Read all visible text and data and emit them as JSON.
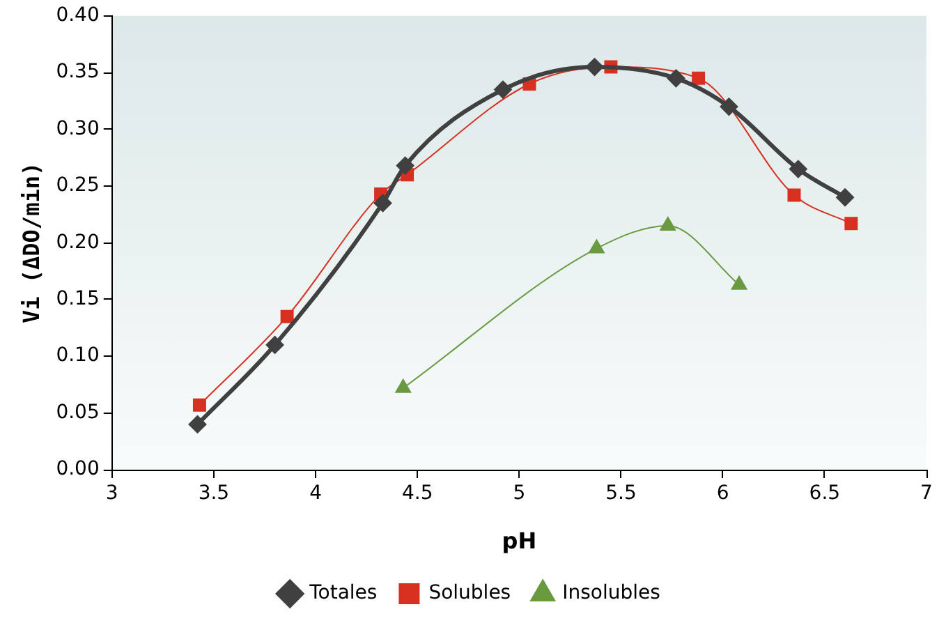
{
  "chart_data": {
    "type": "line",
    "xlabel": "pH",
    "ylabel": "Vi (ΔDO/min)",
    "xlim": [
      3,
      7
    ],
    "xticks": [
      3,
      3.5,
      4,
      4.5,
      5,
      5.5,
      6,
      6.5,
      7
    ],
    "ylim": [
      0,
      0.4
    ],
    "yticks": [
      {
        "value": 0,
        "label": "0.00"
      },
      {
        "value": 0.05,
        "label": "0.05"
      },
      {
        "value": 0.1,
        "label": "0.10"
      },
      {
        "value": 0.15,
        "label": "0.15"
      },
      {
        "value": 0.2,
        "label": "0.20"
      },
      {
        "value": 0.25,
        "label": "0.25"
      },
      {
        "value": 0.3,
        "label": "0.30"
      },
      {
        "value": 0.35,
        "label": "0.35"
      },
      {
        "value": 0.4,
        "label": "0.40"
      }
    ],
    "grid": false,
    "legend": "bottom",
    "series": [
      {
        "name": "Totales",
        "color": "#404040",
        "marker": "diamond",
        "x": [
          3.42,
          3.8,
          4.33,
          4.44,
          4.92,
          5.37,
          5.77,
          6.03,
          6.37,
          6.6
        ],
        "values": [
          0.04,
          0.11,
          0.235,
          0.268,
          0.335,
          0.355,
          0.345,
          0.32,
          0.265,
          0.24
        ]
      },
      {
        "name": "Solubles",
        "color": "#d83020",
        "marker": "square",
        "x": [
          3.43,
          3.86,
          4.32,
          4.45,
          5.05,
          5.45,
          5.88,
          6.35,
          6.63
        ],
        "values": [
          0.057,
          0.135,
          0.243,
          0.26,
          0.34,
          0.355,
          0.345,
          0.242,
          0.217
        ]
      },
      {
        "name": "Insolubles",
        "color": "#6a9a40",
        "marker": "triangle",
        "x": [
          4.43,
          5.38,
          5.73,
          6.08
        ],
        "values": [
          0.072,
          0.195,
          0.215,
          0.163
        ]
      }
    ]
  }
}
